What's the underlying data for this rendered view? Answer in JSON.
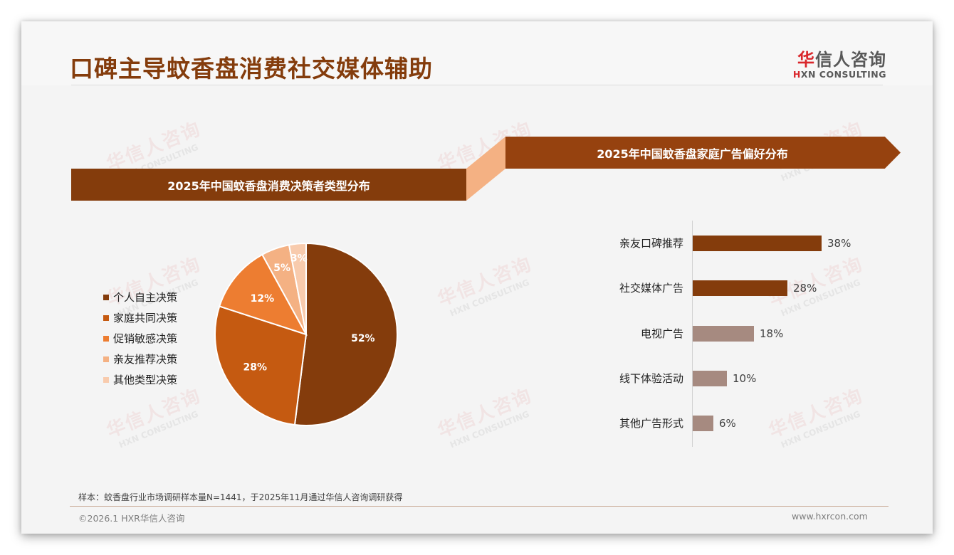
{
  "header": {
    "title": "口碑主导蚊香盘消费社交媒体辅助",
    "logo": {
      "cn_first": "华",
      "cn_rest": "信人咨询",
      "en_first": "H",
      "en_rest": "XN CONSULTING"
    }
  },
  "watermark": {
    "cn": "华信人咨询",
    "en": "HXN CONSULTING"
  },
  "left_panel": {
    "title": "2025年中国蚊香盘消费决策者类型分布"
  },
  "right_panel": {
    "title": "2025年中国蚊香盘家庭广告偏好分布"
  },
  "colors": {
    "primary_brown": "#843c0c",
    "band_right": "#96420f",
    "connector": "#f4b183",
    "bar_highlight": "#843c0c",
    "bar_muted": "#a68a80"
  },
  "chart_data": [
    {
      "type": "pie",
      "title": "2025年中国蚊香盘消费决策者类型分布",
      "categories": [
        "个人自主决策",
        "家庭共同决策",
        "促销敏感决策",
        "亲友推荐决策",
        "其他类型决策"
      ],
      "values": [
        52,
        28,
        12,
        5,
        3
      ],
      "labels": [
        "52%",
        "28%",
        "12%",
        "5%",
        "3%"
      ],
      "colors": [
        "#843c0c",
        "#c55a11",
        "#ed7d31",
        "#f4b183",
        "#f8cbad"
      ],
      "legend_position": "left",
      "start_angle": "12 o'clock, clockwise"
    },
    {
      "type": "bar",
      "orientation": "horizontal",
      "title": "2025年中国蚊香盘家庭广告偏好分布",
      "categories": [
        "亲友口碑推荐",
        "社交媒体广告",
        "电视广告",
        "线下体验活动",
        "其他广告形式"
      ],
      "values": [
        38,
        28,
        18,
        10,
        6
      ],
      "labels": [
        "38%",
        "28%",
        "18%",
        "10%",
        "6%"
      ],
      "colors": [
        "#843c0c",
        "#843c0c",
        "#a68a80",
        "#a68a80",
        "#a68a80"
      ],
      "xlabel": "",
      "ylabel": "",
      "grid": false
    }
  ],
  "footer": {
    "sample_note": "样本：蚊香盘行业市场调研样本量N=1441，于2025年11月通过华信人咨询调研获得",
    "copyright": "©2026.1 HXR华信人咨询",
    "website": "www.hxrcon.com"
  }
}
